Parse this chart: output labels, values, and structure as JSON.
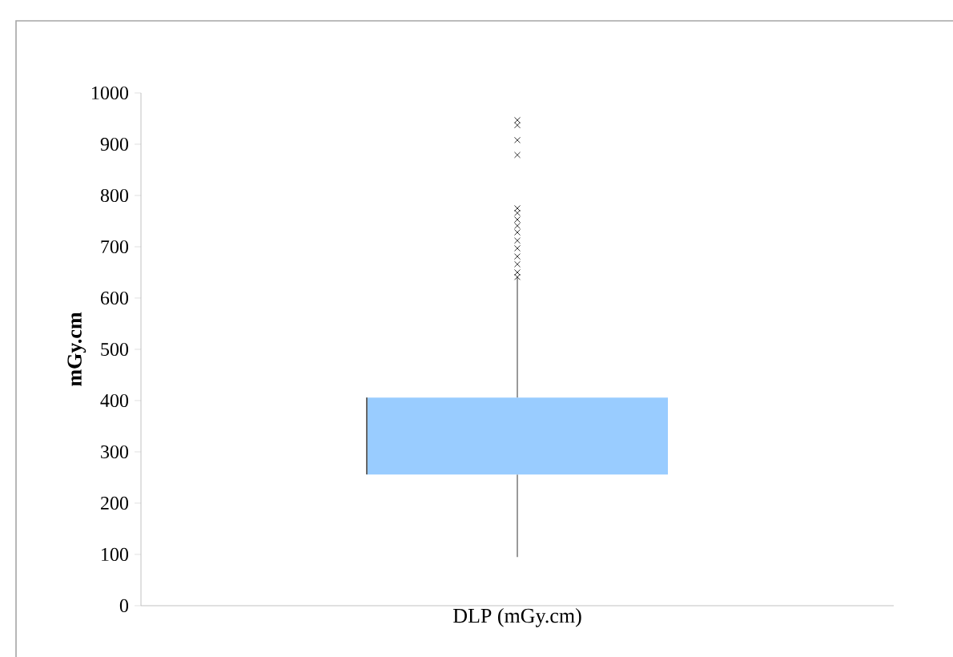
{
  "chart_data": {
    "type": "box",
    "xlabel": "DLP (mGy.cm)",
    "ylabel": "mGy.cm",
    "categories": [
      null
    ],
    "boxes": [
      {
        "low": 95,
        "q1": 256,
        "q3": 406,
        "high": 641,
        "outliers": [
          947,
          937,
          908,
          879,
          775,
          766,
          753,
          741,
          728,
          712,
          697,
          681,
          666,
          650,
          641
        ]
      }
    ],
    "color": "#99ccff",
    "marker": "cross",
    "ylim": [
      0,
      1000
    ],
    "yticks": [
      0,
      100,
      200,
      300,
      400,
      500,
      600,
      700,
      800,
      900,
      1000
    ],
    "grid": false
  }
}
